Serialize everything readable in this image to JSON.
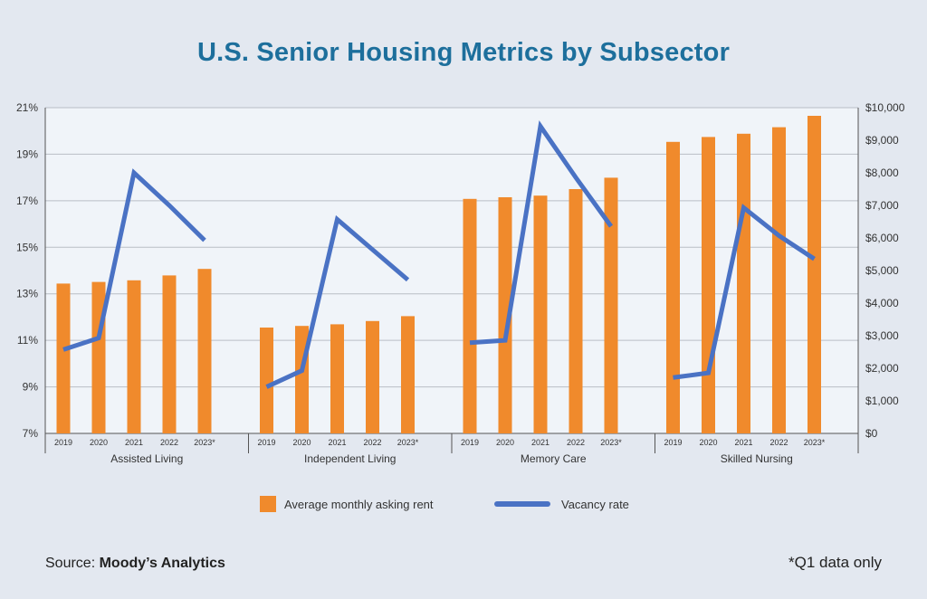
{
  "chart_data": {
    "type": "bar",
    "title": "U.S. Senior Housing Metrics by Subsector",
    "groups": [
      "Assisted Living",
      "Independent Living",
      "Memory Care",
      "Skilled Nursing"
    ],
    "x": [
      "2019",
      "2020",
      "2021",
      "2022",
      "2023*"
    ],
    "series": [
      {
        "name": "Average monthly asking rent",
        "kind": "bar",
        "axis": "right",
        "color": "#f08a2c",
        "values": [
          [
            4600,
            4650,
            4700,
            4850,
            5050
          ],
          [
            3250,
            3300,
            3350,
            3450,
            3600
          ],
          [
            7200,
            7250,
            7300,
            7500,
            7850
          ],
          [
            8950,
            9100,
            9200,
            9400,
            9750
          ]
        ]
      },
      {
        "name": "Vacancy rate",
        "kind": "line",
        "axis": "left",
        "color": "#4a72c4",
        "values": [
          [
            10.6,
            11.1,
            18.2,
            16.8,
            15.3
          ],
          [
            9.0,
            9.7,
            16.2,
            14.9,
            13.6
          ],
          [
            10.9,
            11.0,
            20.2,
            18.0,
            15.9
          ],
          [
            9.4,
            9.6,
            16.7,
            15.5,
            14.5
          ]
        ]
      }
    ],
    "left_axis": {
      "min": 7,
      "max": 21,
      "ticks": [
        "21%",
        "19%",
        "17%",
        "15%",
        "13%",
        "11%",
        "9%",
        "7%"
      ],
      "tick_values": [
        21,
        19,
        17,
        15,
        13,
        11,
        9,
        7
      ]
    },
    "right_axis": {
      "min": 0,
      "max": 10000,
      "ticks": [
        "$10,000",
        "$9,000",
        "$8,000",
        "$7,000",
        "$6,000",
        "$5,000",
        "$4,000",
        "$3,000",
        "$2,000",
        "$1,000",
        "$0"
      ],
      "tick_values": [
        10000,
        9000,
        8000,
        7000,
        6000,
        5000,
        4000,
        3000,
        2000,
        1000,
        0
      ]
    },
    "grid": true,
    "legend_position": "bottom-center"
  },
  "source": {
    "label": "Source: ",
    "value": "Moody’s Analytics"
  },
  "footnote": "*Q1 data only",
  "colors": {
    "title": "#1d6f9c",
    "background": "#e3e8f0",
    "plot_background": "#f0f4f9",
    "grid": "#b9bec6"
  }
}
